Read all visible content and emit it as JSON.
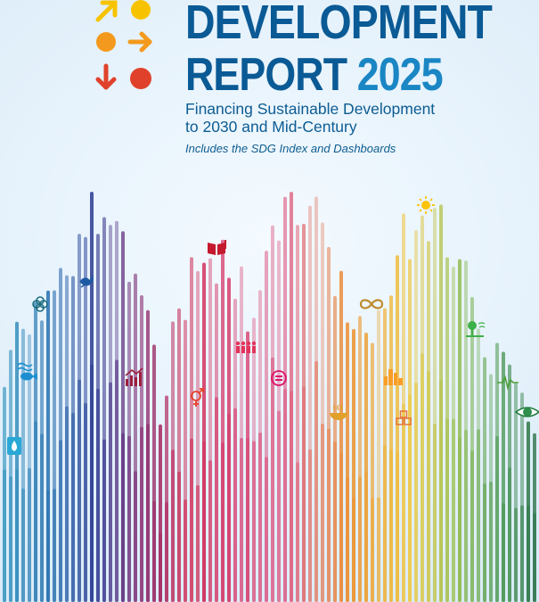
{
  "cover": {
    "title_line_1": "DEVELOPMENT",
    "title_line_2": "REPORT",
    "year": "2025",
    "subtitle_line_1": "Financing Sustainable Development",
    "subtitle_line_2": "to 2030 and Mid-Century",
    "tagline": "Includes the SDG Index and Dashboards"
  },
  "colors": {
    "title": "#0a5a95",
    "year": "#1a86c4",
    "logo_yellow": "#f7c300",
    "logo_orange": "#f39a1e",
    "logo_red": "#e0412b"
  },
  "icons": [
    "arrow-icon",
    "sun-dot-icon",
    "orange-dot-icon",
    "arrow-right-icon",
    "arrow-down-icon",
    "red-dot-icon",
    "water-drop-icon",
    "fish-icon",
    "flower-icon",
    "dove-icon",
    "growth-chart-icon",
    "gender-icon",
    "people-icon",
    "book-icon",
    "equality-icon",
    "bowl-icon",
    "infinity-icon",
    "city-icon",
    "boxes-icon",
    "sun-icon",
    "tree-icon",
    "heartbeat-icon",
    "eye-globe-icon"
  ]
}
